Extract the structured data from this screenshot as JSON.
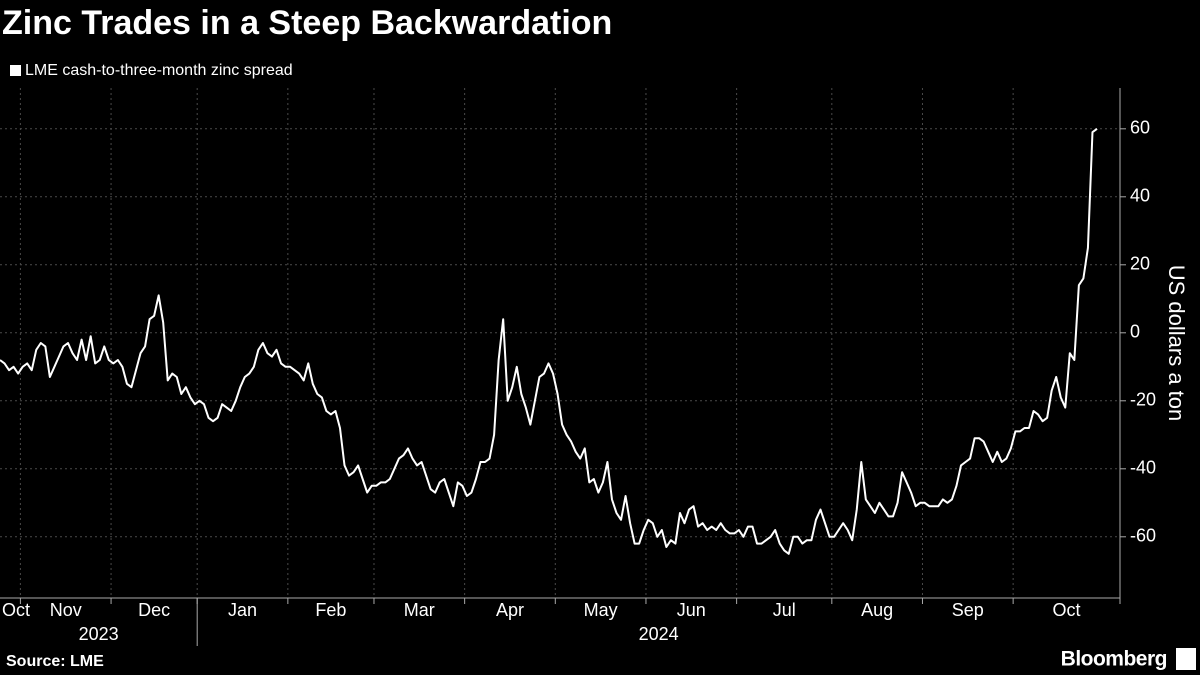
{
  "chart_data": {
    "type": "line",
    "title": "Zinc Trades in a Steep Backwardation",
    "y_label": "US dollars a ton",
    "source": "Source: LME",
    "brand": "Bloomberg",
    "grid": true,
    "legend": "top-left",
    "categories": [
      "Oct",
      null,
      null,
      null,
      null,
      "Nov",
      null,
      null,
      null,
      null,
      null,
      null,
      null,
      null,
      null,
      null,
      null,
      null,
      null,
      null,
      null,
      null,
      null,
      null,
      null,
      "Dec",
      null,
      null,
      null,
      null,
      null,
      null,
      null,
      null,
      null,
      null,
      null,
      null,
      null,
      null,
      null,
      null,
      null,
      null,
      "Jan",
      null,
      null,
      null,
      null,
      null,
      null,
      null,
      null,
      null,
      null,
      null,
      null,
      null,
      null,
      null,
      null,
      null,
      null,
      null,
      "Feb",
      null,
      null,
      null,
      null,
      null,
      null,
      null,
      null,
      null,
      null,
      null,
      null,
      null,
      null,
      null,
      null,
      null,
      null,
      "Mar",
      null,
      null,
      null,
      null,
      null,
      null,
      null,
      null,
      null,
      null,
      null,
      null,
      null,
      null,
      null,
      null,
      null,
      null,
      null,
      "Apr",
      null,
      null,
      null,
      null,
      null,
      null,
      null,
      null,
      null,
      null,
      null,
      null,
      null,
      null,
      null,
      null,
      null,
      null,
      null,
      "May",
      null,
      null,
      null,
      null,
      null,
      null,
      null,
      null,
      null,
      null,
      null,
      null,
      null,
      null,
      null,
      null,
      null,
      null,
      null,
      "Jun",
      null,
      null,
      null,
      null,
      null,
      null,
      null,
      null,
      null,
      null,
      null,
      null,
      null,
      null,
      null,
      null,
      null,
      null,
      null,
      "Jul",
      null,
      null,
      null,
      null,
      null,
      null,
      null,
      null,
      null,
      null,
      null,
      null,
      null,
      null,
      null,
      null,
      null,
      null,
      null,
      null,
      "Aug",
      null,
      null,
      null,
      null,
      null,
      null,
      null,
      null,
      null,
      null,
      null,
      null,
      null,
      null,
      null,
      null,
      null,
      null,
      null,
      "Sep",
      null,
      null,
      null,
      null,
      null,
      null,
      null,
      null,
      null,
      null,
      null,
      null,
      null,
      null,
      null,
      null,
      null,
      null,
      null,
      "Oct",
      null,
      null,
      null,
      null,
      null,
      null,
      null,
      null,
      null,
      null,
      null,
      null,
      null,
      null,
      null,
      null,
      null,
      null
    ],
    "x_groups": [
      {
        "label": "2023",
        "start": 0
      },
      {
        "label": "2024",
        "start": 44
      }
    ],
    "series": [
      {
        "name": "LME cash-to-three-month zinc spread",
        "color": "#ffffff",
        "values": [
          -8,
          -9,
          -11,
          -10,
          -12,
          -10,
          -9,
          -11,
          -5,
          -3,
          -4,
          -13,
          -10,
          -7,
          -4,
          -3,
          -6,
          -8,
          -2,
          -8,
          -1,
          -9,
          -8,
          -4,
          -8,
          -9,
          -8,
          -10,
          -15,
          -16,
          -11,
          -6,
          -4,
          4,
          5,
          11,
          3,
          -14,
          -12,
          -13,
          -18,
          -16,
          -19,
          -21,
          -20,
          -21,
          -25,
          -26,
          -25,
          -21,
          -22,
          -23,
          -20,
          -16,
          -13,
          -12,
          -10,
          -5,
          -3,
          -6,
          -7,
          -5,
          -9,
          -10,
          -10,
          -11,
          -12,
          -14,
          -9,
          -15,
          -18,
          -19,
          -23,
          -24,
          -23,
          -28,
          -39,
          -42,
          -41,
          -39,
          -43,
          -47,
          -45,
          -45,
          -44,
          -44,
          -43,
          -40,
          -37,
          -36,
          -34,
          -37,
          -39,
          -38,
          -42,
          -46,
          -47,
          -44,
          -43,
          -47,
          -51,
          -44,
          -45,
          -48,
          -47,
          -43,
          -38,
          -38,
          -37,
          -30,
          -8,
          4,
          -20,
          -16,
          -10,
          -18,
          -22,
          -27,
          -20,
          -13,
          -12,
          -9,
          -12,
          -18,
          -27,
          -30,
          -32,
          -35,
          -37,
          -34,
          -44,
          -43,
          -47,
          -44,
          -38,
          -49,
          -53,
          -55,
          -48,
          -56,
          -62,
          -62,
          -58,
          -55,
          -56,
          -60,
          -58,
          -63,
          -61,
          -62,
          -53,
          -56,
          -52,
          -51,
          -57,
          -56,
          -58,
          -57,
          -58,
          -56,
          -58,
          -59,
          -59,
          -58,
          -60,
          -57,
          -57,
          -62,
          -62,
          -61,
          -60,
          -58,
          -62,
          -64,
          -65,
          -60,
          -60,
          -62,
          -61,
          -61,
          -55,
          -52,
          -56,
          -60,
          -60,
          -58,
          -56,
          -58,
          -61,
          -52,
          -38,
          -49,
          -51,
          -53,
          -50,
          -52,
          -54,
          -54,
          -50,
          -41,
          -44,
          -47,
          -51,
          -50,
          -50,
          -51,
          -51,
          -51,
          -49,
          -50,
          -49,
          -45,
          -39,
          -38,
          -37,
          -31,
          -31,
          -32,
          -35,
          -38,
          -35,
          -38,
          -37,
          -34,
          -29,
          -29,
          -28,
          -28,
          -23,
          -24,
          -26,
          -25,
          -17,
          -13,
          -19,
          -22,
          -6,
          -8,
          14,
          16,
          25,
          59,
          60
        ]
      }
    ],
    "ylim": [
      -78,
      72
    ],
    "yticks": [
      -60,
      -40,
      -20,
      0,
      20,
      40,
      60
    ]
  }
}
